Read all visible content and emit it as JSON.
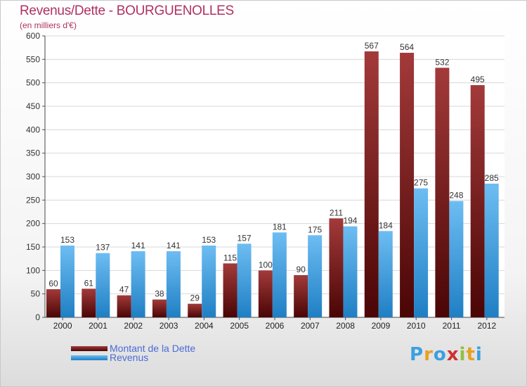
{
  "header": {
    "title": "Revenus/Dette - BOURGUENOLLES",
    "subtitle": "(en milliers d'€)"
  },
  "chart_data": {
    "type": "bar",
    "categories": [
      "2000",
      "2001",
      "2002",
      "2003",
      "2004",
      "2005",
      "2006",
      "2007",
      "2008",
      "2009",
      "2010",
      "2011",
      "2012"
    ],
    "series": [
      {
        "name": "Montant de la Dette",
        "color": "#7a1515",
        "values": [
          60,
          61,
          47,
          38,
          29,
          115,
          100,
          90,
          211,
          567,
          564,
          532,
          495
        ]
      },
      {
        "name": "Revenus",
        "color": "#3a9fe0",
        "values": [
          153,
          137,
          141,
          141,
          153,
          157,
          181,
          175,
          194,
          184,
          275,
          248,
          285
        ]
      }
    ],
    "ylim": [
      0,
      600
    ],
    "yticks": [
      0,
      50,
      100,
      150,
      200,
      250,
      300,
      350,
      400,
      450,
      500,
      550,
      600
    ],
    "grid": true,
    "legend_position": "bottom-left"
  },
  "brand": {
    "letters": [
      "P",
      "r",
      "o",
      "x",
      "i",
      "t",
      "i"
    ],
    "colors": [
      "#3aa0e0",
      "#e8a020",
      "#3aa0e0",
      "#d03030",
      "#8fc040",
      "#e8a020",
      "#3aa0e0"
    ]
  }
}
